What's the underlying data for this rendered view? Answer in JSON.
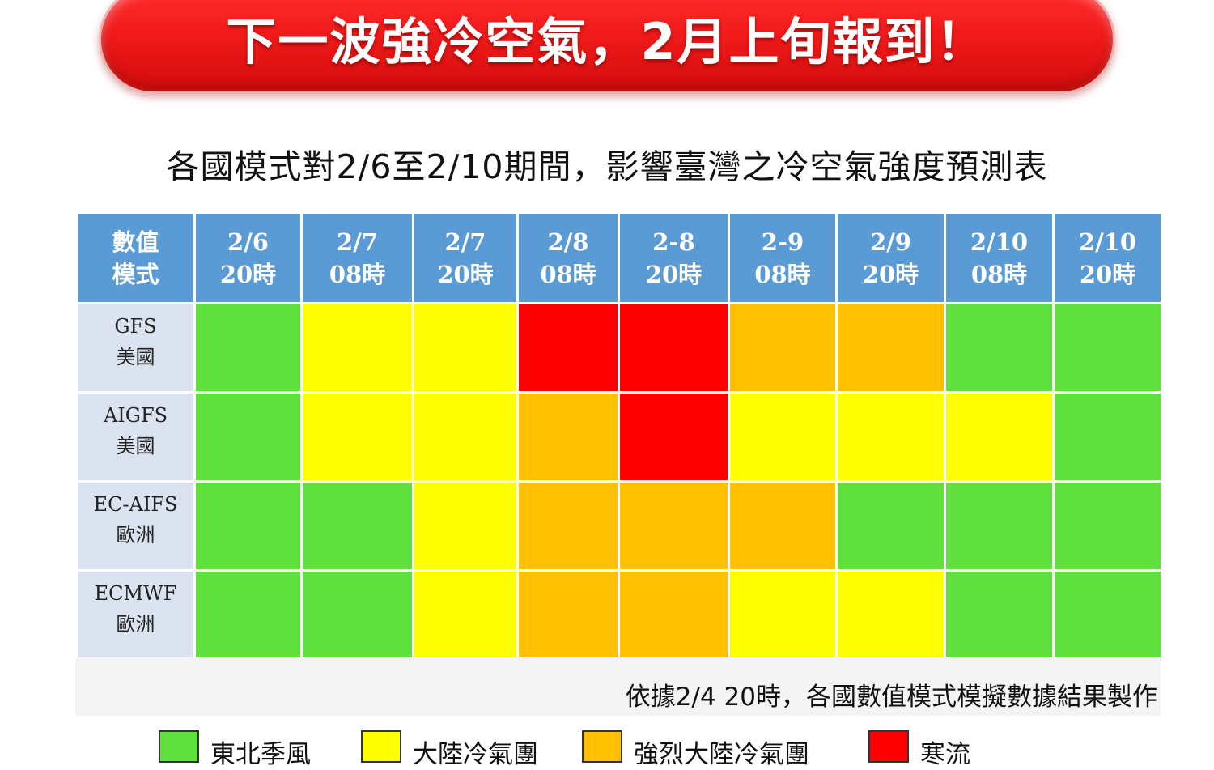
{
  "banner": {
    "title": "下一波強冷空氣，2月上旬報到！"
  },
  "chart_data": {
    "type": "heatmap",
    "title": "各國模式對2/6至2/10期間，影響臺灣之冷空氣強度預測表",
    "corner_label": [
      "數值",
      "模式"
    ],
    "columns": [
      [
        "2/6",
        "20時"
      ],
      [
        "2/7",
        "08時"
      ],
      [
        "2/7",
        "20時"
      ],
      [
        "2/8",
        "08時"
      ],
      [
        "2-8",
        "20時"
      ],
      [
        "2-9",
        "08時"
      ],
      [
        "2/9",
        "20時"
      ],
      [
        "2/10",
        "08時"
      ],
      [
        "2/10",
        "20時"
      ]
    ],
    "rows": [
      {
        "model": "GFS",
        "region": "美國",
        "levels": [
          0,
          1,
          1,
          3,
          3,
          2,
          2,
          0,
          0
        ]
      },
      {
        "model": "AIGFS",
        "region": "美國",
        "levels": [
          0,
          1,
          1,
          2,
          3,
          1,
          1,
          1,
          0
        ]
      },
      {
        "model": "EC-AIFS",
        "region": "歐洲",
        "levels": [
          0,
          0,
          1,
          2,
          2,
          2,
          0,
          0,
          0
        ]
      },
      {
        "model": "ECMWF",
        "region": "歐洲",
        "levels": [
          0,
          0,
          1,
          2,
          2,
          1,
          1,
          0,
          0
        ]
      }
    ],
    "categories": [
      {
        "label": "東北季風",
        "color": "#5fe03d"
      },
      {
        "label": "大陸冷氣團",
        "color": "#ffff00"
      },
      {
        "label": "強烈大陸冷氣團",
        "color": "#ffc000"
      },
      {
        "label": "寒流",
        "color": "#ff0000"
      }
    ],
    "note": "依據2/4 20時，各國數值模式模擬數據結果製作"
  }
}
